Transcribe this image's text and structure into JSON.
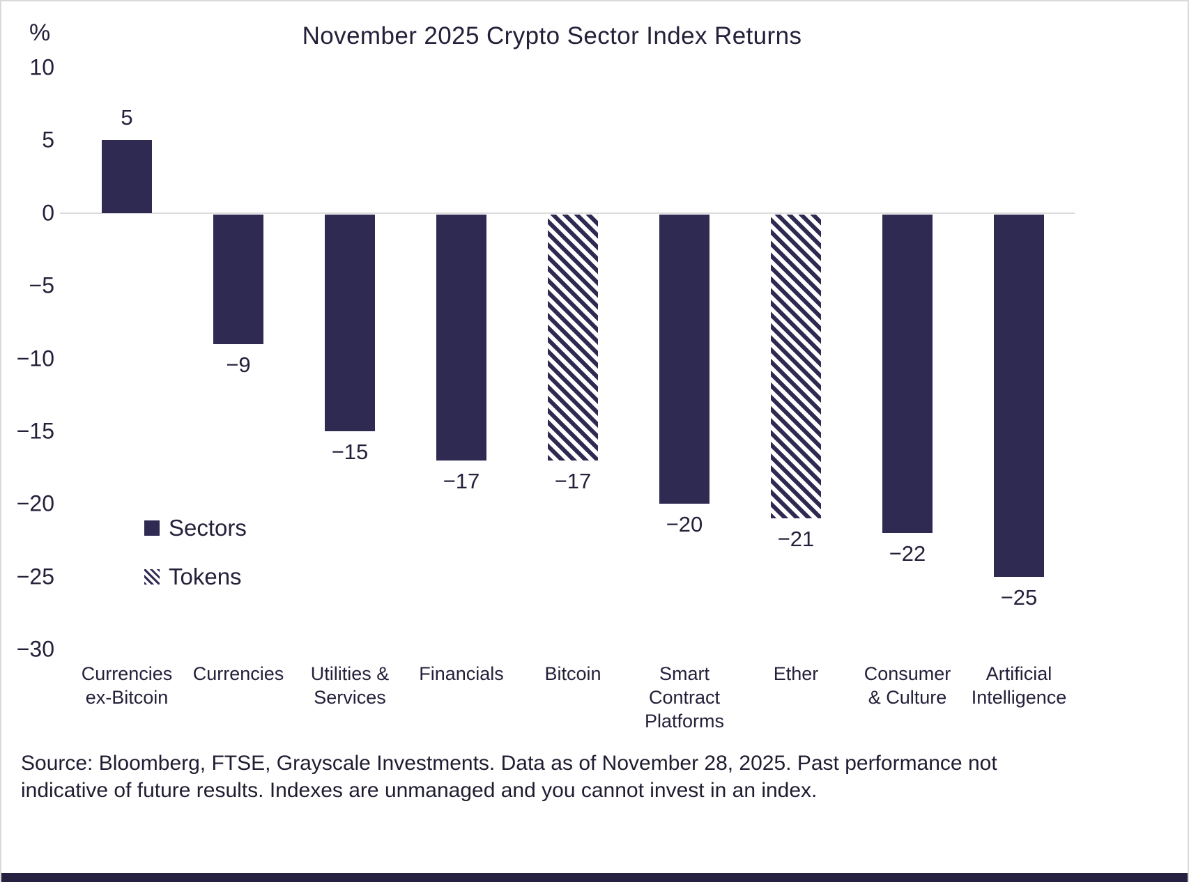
{
  "title": "November 2025 Crypto Sector Index Returns",
  "percent_symbol": "%",
  "legend": [
    {
      "label": "Sectors",
      "style": "solid"
    },
    {
      "label": "Tokens",
      "style": "hatched"
    }
  ],
  "source_note": {
    "line1": "Source: Bloomberg, FTSE, Grayscale Investments. Data as of November 28, 2025. Past performance not",
    "line2": "indicative of future results. Indexes are unmanaged and you cannot invest in an index."
  },
  "colors": {
    "bar": "#2f2a52",
    "text": "#23203a",
    "zero_line": "#dcdcdc",
    "footer_bar": "#262140"
  },
  "chart_data": {
    "type": "bar",
    "title": "November 2025 Crypto Sector Index Returns",
    "ylabel": "%",
    "ylim": [
      -30,
      10
    ],
    "ytick_values": [
      10,
      5,
      0,
      -5,
      -10,
      -15,
      -20,
      -25,
      -30
    ],
    "ytick_labels": [
      "10",
      "5",
      "0",
      "−5",
      "−10",
      "−15",
      "−20",
      "−25",
      "−30"
    ],
    "grid": false,
    "legend_position": "middle-left",
    "categories": [
      [
        "Currencies",
        "ex-Bitcoin"
      ],
      [
        "Currencies"
      ],
      [
        "Utilities &",
        "Services"
      ],
      [
        "Financials"
      ],
      [
        "Bitcoin"
      ],
      [
        "Smart",
        "Contract",
        "Platforms"
      ],
      [
        "Ether"
      ],
      [
        "Consumer",
        "& Culture"
      ],
      [
        "Artificial",
        "Intelligence"
      ]
    ],
    "values": [
      5,
      -9,
      -15,
      -17,
      -17,
      -20,
      -21,
      -22,
      -25
    ],
    "labels": [
      "5",
      "−9",
      "−15",
      "−17",
      "−17",
      "−20",
      "−21",
      "−22",
      "−25"
    ],
    "styles": [
      "solid",
      "solid",
      "solid",
      "solid",
      "hatched",
      "solid",
      "hatched",
      "solid",
      "solid"
    ]
  }
}
